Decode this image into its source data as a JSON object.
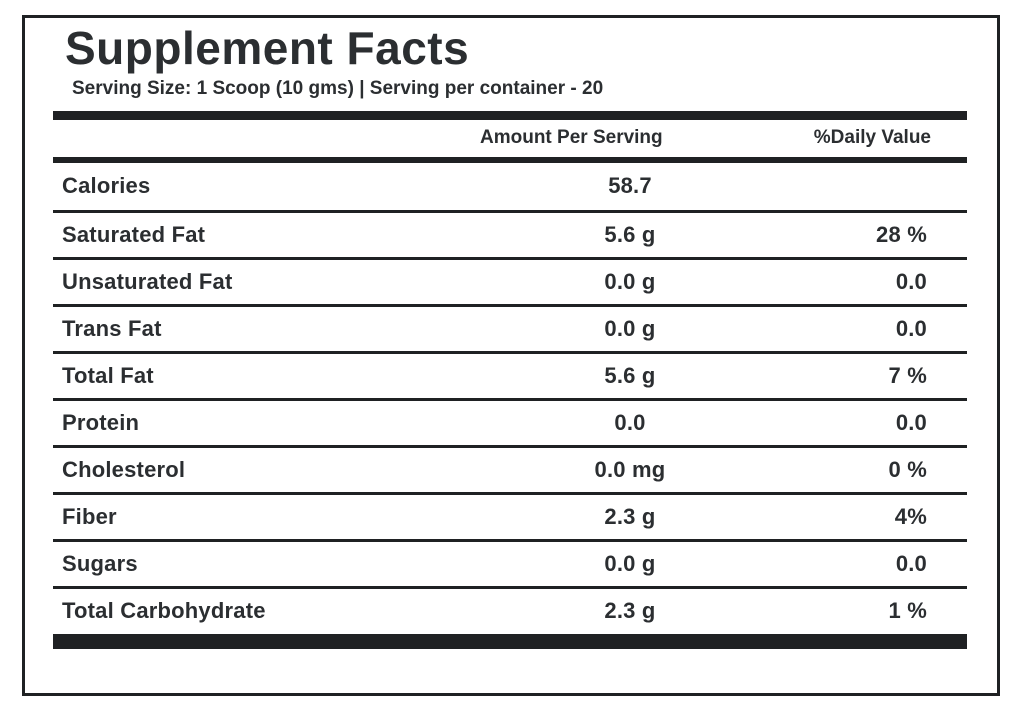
{
  "supplement": {
    "title": "Supplement Facts",
    "serving_info": "Serving Size: 1 Scoop (10 gms) | Serving per container - 20",
    "columns": {
      "amount": "Amount Per Serving",
      "daily": "%Daily Value"
    },
    "rows": [
      {
        "name": "Calories",
        "amount": "58.7",
        "daily": ""
      },
      {
        "name": "Saturated Fat",
        "amount": "5.6 g",
        "daily": "28 %"
      },
      {
        "name": "Unsaturated Fat",
        "amount": "0.0 g",
        "daily": "0.0"
      },
      {
        "name": "Trans Fat",
        "amount": "0.0 g",
        "daily": "0.0"
      },
      {
        "name": "Total Fat",
        "amount": "5.6 g",
        "daily": "7 %"
      },
      {
        "name": "Protein",
        "amount": "0.0",
        "daily": "0.0"
      },
      {
        "name": "Cholesterol",
        "amount": "0.0 mg",
        "daily": "0 %"
      },
      {
        "name": "Fiber",
        "amount": "2.3 g",
        "daily": "4%"
      },
      {
        "name": "Sugars",
        "amount": "0.0 g",
        "daily": "0.0"
      },
      {
        "name": "Total Carbohydrate",
        "amount": "2.3 g",
        "daily": "1 %"
      }
    ],
    "colors": {
      "ink": "#1f2123",
      "text": "#2b2e31",
      "background": "#ffffff"
    }
  }
}
